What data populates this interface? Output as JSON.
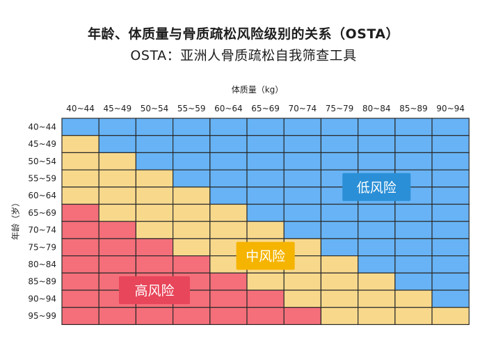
{
  "title": "年龄、体质量与骨质疏松风险级别的关系（OSTA）",
  "subtitle": "OSTA：亚洲人骨质疏松自我筛查工具",
  "chart_data": {
    "type": "heatmap",
    "xlabel": "体质量（kg）",
    "ylabel": "年龄（岁）",
    "x_categories": [
      "40~44",
      "45~49",
      "50~54",
      "55~59",
      "60~64",
      "65~69",
      "70~74",
      "75~79",
      "80~84",
      "85~89",
      "90~94"
    ],
    "y_categories": [
      "40~44",
      "45~49",
      "50~54",
      "55~59",
      "60~64",
      "65~69",
      "70~74",
      "75~79",
      "80~84",
      "85~89",
      "90~94",
      "95~99"
    ],
    "levels": {
      "low": {
        "label": "低风险",
        "color": "#67b3f5"
      },
      "mid": {
        "label": "中风险",
        "color": "#f8d98c"
      },
      "high": {
        "label": "高风险",
        "color": "#f46f7a"
      }
    },
    "label_colors": {
      "low": "#2a8fd6",
      "mid": "#f5b400",
      "high": "#e8465a"
    },
    "matrix": [
      [
        "low",
        "low",
        "low",
        "low",
        "low",
        "low",
        "low",
        "low",
        "low",
        "low",
        "low"
      ],
      [
        "mid",
        "low",
        "low",
        "low",
        "low",
        "low",
        "low",
        "low",
        "low",
        "low",
        "low"
      ],
      [
        "mid",
        "mid",
        "low",
        "low",
        "low",
        "low",
        "low",
        "low",
        "low",
        "low",
        "low"
      ],
      [
        "mid",
        "mid",
        "mid",
        "low",
        "low",
        "low",
        "low",
        "low",
        "low",
        "low",
        "low"
      ],
      [
        "mid",
        "mid",
        "mid",
        "mid",
        "low",
        "low",
        "low",
        "low",
        "low",
        "low",
        "low"
      ],
      [
        "high",
        "mid",
        "mid",
        "mid",
        "mid",
        "low",
        "low",
        "low",
        "low",
        "low",
        "low"
      ],
      [
        "high",
        "high",
        "mid",
        "mid",
        "mid",
        "mid",
        "low",
        "low",
        "low",
        "low",
        "low"
      ],
      [
        "high",
        "high",
        "high",
        "mid",
        "mid",
        "mid",
        "mid",
        "low",
        "low",
        "low",
        "low"
      ],
      [
        "high",
        "high",
        "high",
        "high",
        "mid",
        "mid",
        "mid",
        "mid",
        "low",
        "low",
        "low"
      ],
      [
        "high",
        "high",
        "high",
        "high",
        "high",
        "mid",
        "mid",
        "mid",
        "mid",
        "low",
        "low"
      ],
      [
        "high",
        "high",
        "high",
        "high",
        "high",
        "high",
        "mid",
        "mid",
        "mid",
        "mid",
        "low"
      ],
      [
        "high",
        "high",
        "high",
        "high",
        "high",
        "high",
        "high",
        "mid",
        "mid",
        "mid",
        "mid"
      ]
    ]
  }
}
